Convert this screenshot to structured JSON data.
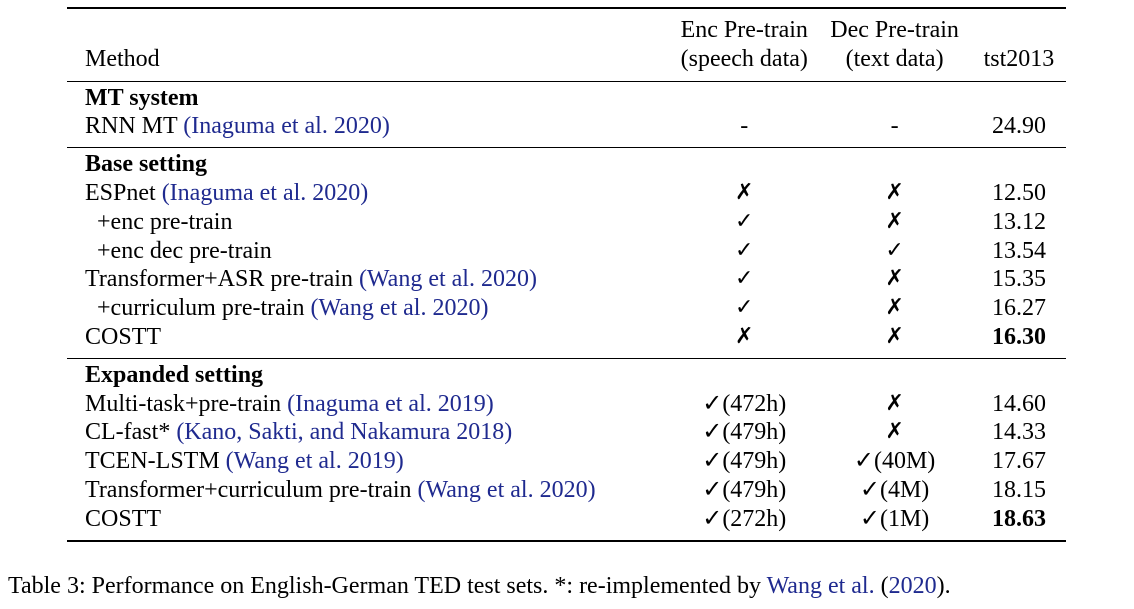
{
  "headers": {
    "method": "Method",
    "enc_line1": "Enc Pre-train",
    "enc_line2": "(speech data)",
    "dec_line1": "Dec Pre-train",
    "dec_line2": "(text data)",
    "score": "tst2013"
  },
  "sections": [
    {
      "title": "MT system",
      "rows": [
        {
          "method": "RNN MT ",
          "cite": "(Inaguma et al. 2020)",
          "enc": "-",
          "dec": "-",
          "score": "24.90"
        }
      ]
    },
    {
      "title": "Base setting",
      "rows": [
        {
          "method": "ESPnet ",
          "cite": "(Inaguma et al. 2020)",
          "enc": "✗",
          "dec": "✗",
          "score": "12.50"
        },
        {
          "method": "+enc pre-train",
          "cite": "",
          "enc": "✓",
          "dec": "✗",
          "score": "13.12"
        },
        {
          "method": "+enc dec pre-train",
          "cite": "",
          "enc": "✓",
          "dec": "✓",
          "score": "13.54"
        },
        {
          "method": "Transformer+ASR pre-train ",
          "cite": "(Wang et al. 2020)",
          "enc": "✓",
          "dec": "✗",
          "score": "15.35"
        },
        {
          "method": "+curriculum pre-train ",
          "cite": "(Wang et al. 2020)",
          "enc": "✓",
          "dec": "✗",
          "score": "16.27"
        },
        {
          "method": "COSTT",
          "cite": "",
          "enc": "✗",
          "dec": "✗",
          "score": "16.30"
        }
      ]
    },
    {
      "title": "Expanded setting",
      "rows": [
        {
          "method": "Multi-task+pre-train  ",
          "cite": "(Inaguma et al. 2019)",
          "enc": "✓(472h)",
          "dec": "✗",
          "score": "14.60"
        },
        {
          "method": "CL-fast* ",
          "cite": "(Kano, Sakti, and Nakamura 2018)",
          "enc": "✓(479h)",
          "dec": "✗",
          "score": "14.33"
        },
        {
          "method": "TCEN-LSTM ",
          "cite": "(Wang et al. 2019)",
          "enc": "✓(479h)",
          "dec": "✓(40M)",
          "score": "17.67"
        },
        {
          "method": "Transformer+curriculum pre-train ",
          "cite": "(Wang et al. 2020)",
          "enc": "✓(479h)",
          "dec": "✓(4M)",
          "score": "18.15"
        },
        {
          "method": "COSTT",
          "cite": "",
          "enc": "✓(272h)",
          "dec": "✓(1M)",
          "score": "18.63"
        }
      ]
    }
  ],
  "caption": {
    "text_before": "Table 3: Performance on English-German TED test sets. *: re-implemented by ",
    "cite_author": "Wang et al.",
    "text_mid": " (",
    "cite_year": "2020",
    "text_after": ")."
  }
}
